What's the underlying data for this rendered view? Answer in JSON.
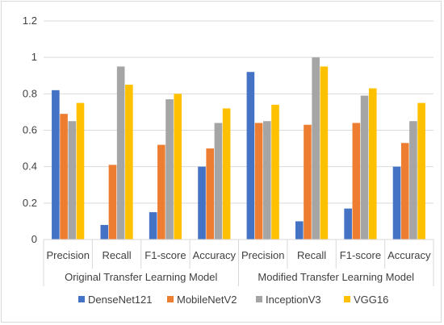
{
  "chart_data": {
    "type": "bar",
    "groups": [
      "Original Transfer Learning Model",
      "Modified Transfer Learning Model"
    ],
    "categories": [
      "Precision",
      "Recall",
      "F1-score",
      "Accuracy",
      "Precision",
      "Recall",
      "F1-score",
      "Accuracy"
    ],
    "series": [
      {
        "name": "DenseNet121",
        "color": "#4472C4",
        "values": [
          0.82,
          0.08,
          0.15,
          0.4,
          0.92,
          0.1,
          0.17,
          0.4
        ]
      },
      {
        "name": "MobileNetV2",
        "color": "#ED7D31",
        "values": [
          0.69,
          0.41,
          0.52,
          0.5,
          0.64,
          0.63,
          0.64,
          0.53
        ]
      },
      {
        "name": "InceptionV3",
        "color": "#A5A5A5",
        "values": [
          0.65,
          0.95,
          0.77,
          0.64,
          0.65,
          1.0,
          0.79,
          0.65
        ]
      },
      {
        "name": "VGG16",
        "color": "#FFC000",
        "values": [
          0.75,
          0.85,
          0.8,
          0.72,
          0.74,
          0.95,
          0.83,
          0.75
        ]
      }
    ],
    "ylim": [
      0,
      1.2
    ],
    "yticks": [
      "0",
      "0.2",
      "0.4",
      "0.6",
      "0.8",
      "1",
      "1.2"
    ],
    "grid": true,
    "legend": "bottom"
  }
}
